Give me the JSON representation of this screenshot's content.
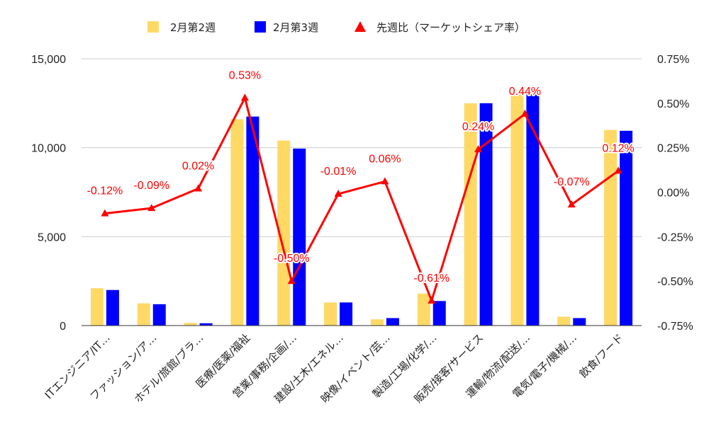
{
  "chart_data": {
    "type": "bar",
    "categories": [
      "ITエンジニア/IT…",
      "ファッション/ア…",
      "ホテル/旅館/ブラ…",
      "医療/医薬/福祉",
      "営業/事務/企画/…",
      "建設/土木/エネル…",
      "映像/イベント/芸…",
      "製造/工場/化学/…",
      "販売/接客/サービス",
      "運輸/物流/配送/…",
      "電気/電子/機械/…",
      "飲食/フード"
    ],
    "series": [
      {
        "name": "2月第2週",
        "type": "bar",
        "axis": "left",
        "color": "#ffd966",
        "values": [
          2100,
          1250,
          150,
          11600,
          10400,
          1300,
          350,
          1800,
          12500,
          13050,
          500,
          11000
        ]
      },
      {
        "name": "2月第3週",
        "type": "bar",
        "axis": "left",
        "color": "#0000ff",
        "values": [
          2000,
          1200,
          130,
          11750,
          9950,
          1300,
          420,
          1380,
          12500,
          13150,
          420,
          10950
        ]
      },
      {
        "name": "先週比（マーケットシェア率）",
        "type": "line",
        "axis": "right",
        "color": "#ff0000",
        "values": [
          -0.12,
          -0.09,
          0.02,
          0.53,
          -0.5,
          -0.01,
          0.06,
          -0.61,
          0.24,
          0.44,
          -0.07,
          0.12
        ],
        "labels": [
          "-0.12%",
          "-0.09%",
          "0.02%",
          "0.53%",
          "-0.50%",
          "-0.01%",
          "0.06%",
          "-0.61%",
          "0.24%",
          "0.44%",
          "-0.07%",
          "0.12%"
        ]
      }
    ],
    "y_left": {
      "ylim": [
        0,
        15000
      ],
      "ticks": [
        "0",
        "5,000",
        "10,000",
        "15,000"
      ],
      "tick_values": [
        0,
        5000,
        10000,
        15000
      ]
    },
    "y_right": {
      "ylim": [
        -0.75,
        0.75
      ],
      "ticks": [
        "-0.75%",
        "-0.50%",
        "-0.25%",
        "0.00%",
        "0.25%",
        "0.50%",
        "0.75%"
      ],
      "tick_values": [
        -0.75,
        -0.5,
        -0.25,
        0,
        0.25,
        0.5,
        0.75
      ]
    },
    "legend": {
      "position": "top",
      "items": [
        "2月第2週",
        "2月第3週",
        "先週比（マーケットシェア率）"
      ]
    },
    "grid": true
  }
}
